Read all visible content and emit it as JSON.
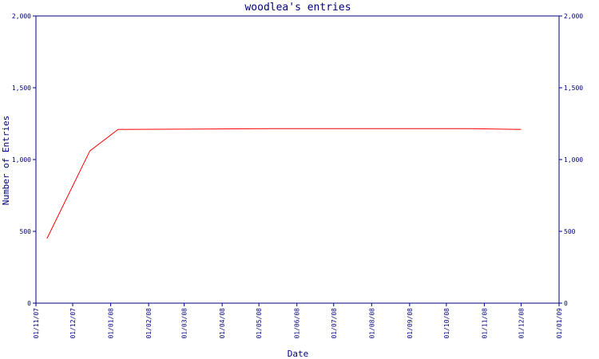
{
  "chart_data": {
    "type": "line",
    "title": "woodlea's entries",
    "xlabel": "Date",
    "ylabel": "Number of Entries",
    "ylim": [
      0,
      2000
    ],
    "xlim": [
      "2007-11-01",
      "2009-01-01"
    ],
    "grid": false,
    "y_ticks": [
      0,
      500,
      1000,
      1500,
      2000
    ],
    "y_tick_labels": [
      "0",
      "500",
      "1,000",
      "1,500",
      "2,000"
    ],
    "x_ticks": [
      "2007-11-01",
      "2007-12-01",
      "2008-01-01",
      "2008-02-01",
      "2008-03-01",
      "2008-04-01",
      "2008-05-01",
      "2008-06-01",
      "2008-07-01",
      "2008-08-01",
      "2008-09-01",
      "2008-10-01",
      "2008-11-01",
      "2008-12-01",
      "2009-01-01"
    ],
    "x_tick_labels": [
      "01/11/07",
      "01/12/07",
      "01/01/08",
      "01/02/08",
      "01/03/08",
      "01/04/08",
      "01/05/08",
      "01/06/08",
      "01/07/08",
      "01/08/08",
      "01/09/08",
      "01/10/08",
      "01/11/08",
      "01/12/08",
      "01/01/09"
    ],
    "series": [
      {
        "color": "#ff0000",
        "x": [
          "2007-11-10",
          "2007-12-15",
          "2008-01-07",
          "2008-05-10",
          "2008-10-20",
          "2008-12-01"
        ],
        "values": [
          450,
          1060,
          1210,
          1215,
          1215,
          1210
        ]
      }
    ]
  },
  "colors": {
    "axis": "#000080",
    "text": "#000080",
    "line": "#ff0000",
    "background": "#ffffff"
  }
}
